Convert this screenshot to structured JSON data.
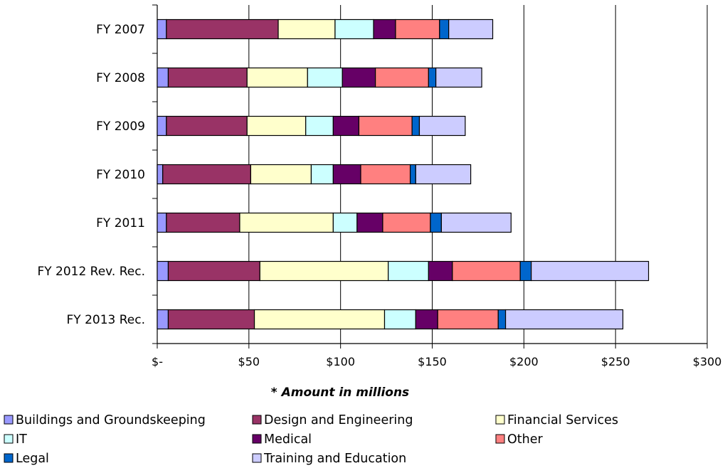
{
  "chart_data": {
    "type": "bar",
    "orientation": "horizontal",
    "stacked": true,
    "categories": [
      "FY 2007",
      "FY 2008",
      "FY 2009",
      "FY 2010",
      "FY 2011",
      "FY 2012 Rev. Rec.",
      "FY 2013 Rec."
    ],
    "series": [
      {
        "name": "Buildings and Groundskeeping",
        "color": "#9999FF",
        "values": [
          5,
          6,
          5,
          3,
          5,
          6,
          6
        ]
      },
      {
        "name": "Design and  Engineering",
        "color": "#993366",
        "values": [
          61,
          43,
          44,
          48,
          40,
          50,
          47
        ]
      },
      {
        "name": "Financial Services",
        "color": "#FFFFCC",
        "values": [
          31,
          33,
          32,
          33,
          51,
          70,
          71
        ]
      },
      {
        "name": "IT",
        "color": "#CCFFFF",
        "values": [
          21,
          19,
          15,
          12,
          13,
          22,
          17
        ]
      },
      {
        "name": "Medical",
        "color": "#660066",
        "values": [
          12,
          18,
          14,
          15,
          14,
          13,
          12
        ]
      },
      {
        "name": "Other",
        "color": "#FF8080",
        "values": [
          24,
          29,
          29,
          27,
          26,
          37,
          33
        ]
      },
      {
        "name": "Legal",
        "color": "#0066CC",
        "values": [
          5,
          4,
          4,
          3,
          6,
          6,
          4
        ]
      },
      {
        "name": "Training and Education",
        "color": "#CCCCFF",
        "values": [
          24,
          25,
          25,
          30,
          38,
          64,
          64
        ]
      }
    ],
    "x_ticks": [
      "$-",
      "$50",
      "$100",
      "$150",
      "$200",
      "$250",
      "$300"
    ],
    "xlim": [
      0,
      300
    ],
    "x_tick_step": 50,
    "note": "* Amount in millions",
    "grid": "vertical",
    "legend": "bottom"
  }
}
